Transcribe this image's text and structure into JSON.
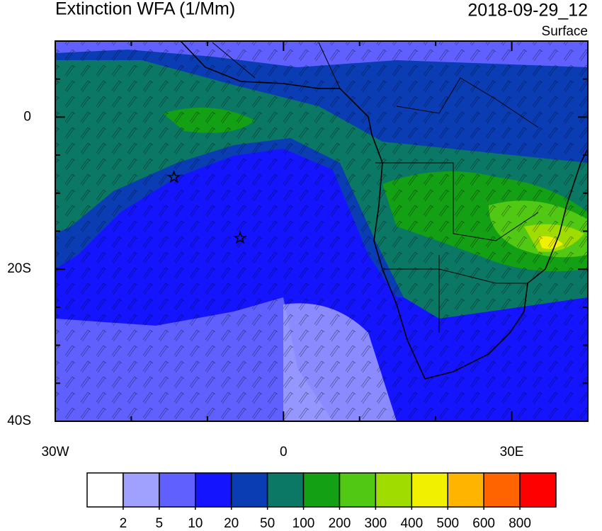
{
  "title": "Extinction WFA (1/Mm)",
  "date": "2018-09-29_12",
  "level": "Surface",
  "map": {
    "xlim": [
      -30,
      40
    ],
    "ylim": [
      -40,
      10
    ],
    "xticks": [
      {
        "value": -30,
        "label": "30W"
      },
      0,
      {
        "value": 30,
        "label": "30E"
      }
    ],
    "yticks": [
      0,
      {
        "value": -20,
        "label": "20S"
      },
      {
        "value": -40,
        "label": "40S"
      }
    ],
    "minor_xticks": [
      -20,
      -10,
      10,
      20,
      40
    ],
    "minor_yticks": [
      5,
      -5,
      -10,
      -15,
      -25,
      -30,
      -35
    ],
    "markers": [
      {
        "lon": -14.4,
        "lat": -7.9
      },
      {
        "lon": -5.7,
        "lat": -15.9
      }
    ]
  },
  "colorbar": {
    "levels": [
      2,
      5,
      10,
      20,
      50,
      100,
      200,
      300,
      400,
      500,
      600,
      800
    ],
    "colors": [
      "#ffffff",
      "#a0a0ff",
      "#6060ff",
      "#1414ff",
      "#0a3cb4",
      "#0a7864",
      "#14a014",
      "#50c814",
      "#a0dc00",
      "#f0f000",
      "#ffb400",
      "#ff6400",
      "#ff0000"
    ]
  }
}
